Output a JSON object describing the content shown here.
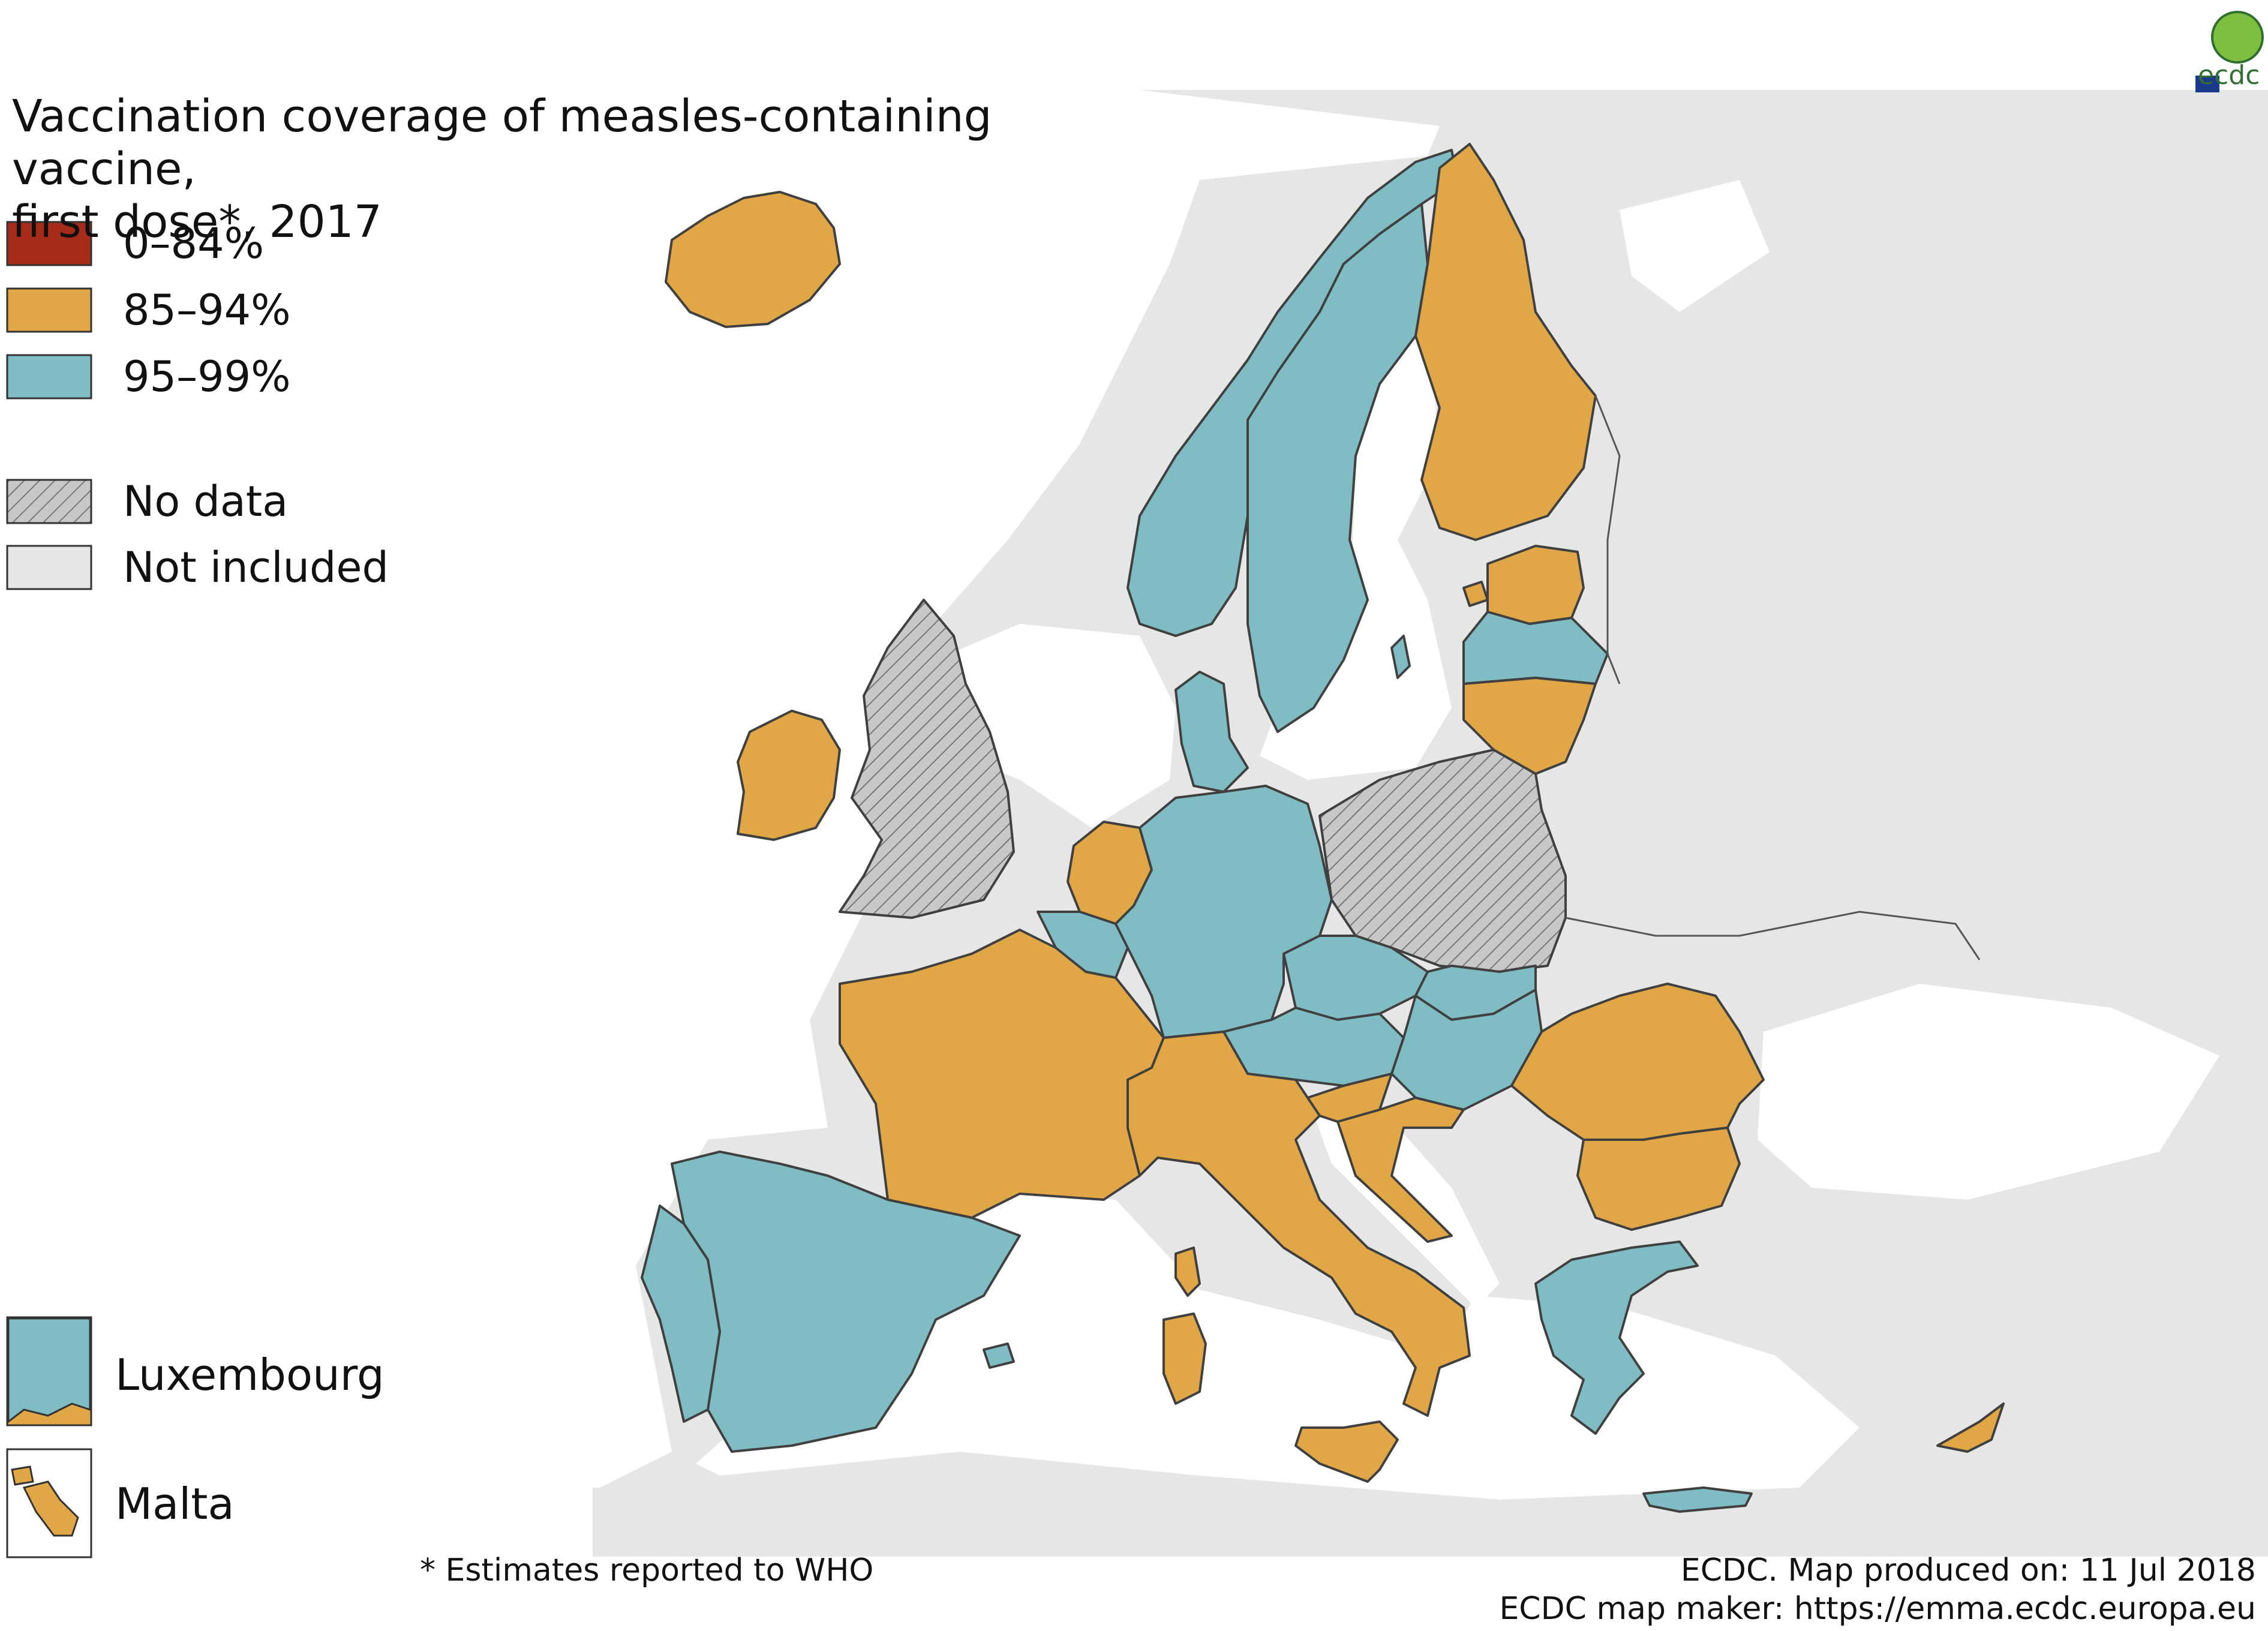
{
  "title_line1": "Vaccination coverage of measles-containing vaccine,",
  "title_line2": "first dose*, 2017",
  "colors": {
    "c0_84": "#A62B1A",
    "c85_94": "#E1A746",
    "c95_99": "#7FBCC4",
    "no_data": "#C8C8C8",
    "not_included": "#E6E6E6",
    "water": "#FFFFFF",
    "border": "#404040"
  },
  "legend": [
    {
      "label": "0–84%",
      "color": "#A62B1A",
      "pattern": false
    },
    {
      "label": "85–94%",
      "color": "#E1A746",
      "pattern": false
    },
    {
      "label": "95–99%",
      "color": "#7FBCC4",
      "pattern": false
    },
    {
      "label": "No data",
      "color": "#C8C8C8",
      "pattern": true
    },
    {
      "label": "Not included",
      "color": "#E6E6E6",
      "pattern": false
    }
  ],
  "countries": {
    "Iceland": "85–94%",
    "Ireland": "85–94%",
    "United Kingdom": "No data",
    "Norway": "95–99%",
    "Sweden": "95–99%",
    "Finland": "85–94%",
    "Estonia": "85–94%",
    "Latvia": "95–99%",
    "Lithuania": "85–94%",
    "Denmark": "95–99%",
    "Netherlands": "85–94%",
    "Belgium": "95–99%",
    "Luxembourg": "95–99%",
    "Germany": "95–99%",
    "Poland": "No data",
    "France": "85–94%",
    "Spain": "95–99%",
    "Portugal": "95–99%",
    "Italy": "85–94%",
    "Austria": "95–99%",
    "Czechia": "95–99%",
    "Slovakia": "95–99%",
    "Hungary": "95–99%",
    "Slovenia": "85–94%",
    "Croatia": "85–94%",
    "Romania": "85–94%",
    "Bulgaria": "85–94%",
    "Greece": "95–99%",
    "Cyprus": "85–94%",
    "Malta": "85–94%"
  },
  "insets": [
    {
      "label": "Luxembourg",
      "color": "#7FBCC4"
    },
    {
      "label": "Malta",
      "color": "#E1A746"
    }
  ],
  "footnote": "* Estimates reported to WHO",
  "credit_line1": "ECDC. Map produced on: 11 Jul 2018",
  "credit_line2": "ECDC map maker: https://emma.ecdc.europa.eu",
  "logo_text": "ecdc"
}
